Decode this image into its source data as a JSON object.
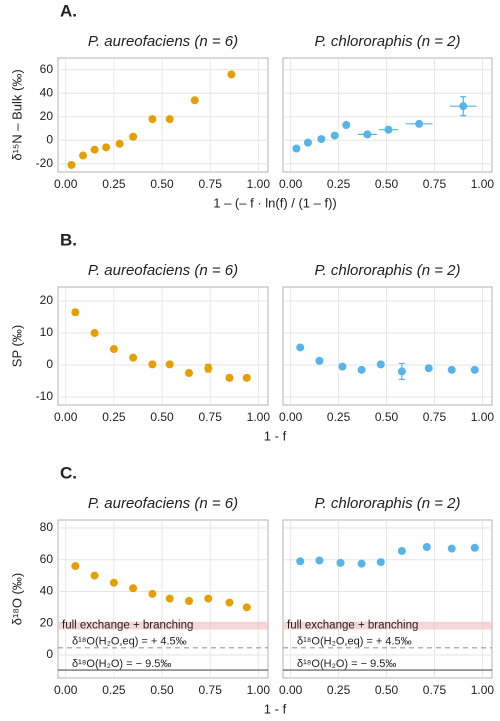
{
  "chart_data": [
    {
      "type": "scatter",
      "panel_label": "A.",
      "title": "P. aureofaciens (n = 6)",
      "x_label": "1 – (– f · ln(f) / (1 – f))",
      "y_label": "δ¹⁵N – Bulk (‰)",
      "x": [
        0.03,
        0.09,
        0.15,
        0.21,
        0.28,
        0.35,
        0.45,
        0.54,
        0.67,
        0.86
      ],
      "values": [
        -21,
        -13,
        -8,
        -6,
        -3,
        3,
        18,
        18,
        34,
        56
      ],
      "color": "#E69F00",
      "xlim": [
        -0.04,
        1.05
      ],
      "ylim": [
        -27,
        70
      ],
      "xticks": [
        {
          "value": 0,
          "label": "0.00"
        },
        {
          "value": 0.25,
          "label": "0.25"
        },
        {
          "value": 0.5,
          "label": "0.50"
        },
        {
          "value": 0.75,
          "label": "0.75"
        },
        {
          "value": 1,
          "label": "1.00"
        }
      ],
      "yticks": [
        -20,
        0,
        20,
        40,
        60
      ],
      "grid": true
    },
    {
      "type": "scatter",
      "title": "P. chlororaphis (n = 2)",
      "x": [
        0.03,
        0.09,
        0.16,
        0.23,
        0.29,
        0.4,
        0.51,
        0.67,
        0.9
      ],
      "values": [
        -7,
        -2,
        1,
        4,
        13,
        5,
        9,
        14,
        29
      ],
      "xerr": [
        null,
        null,
        null,
        null,
        null,
        0.05,
        0.05,
        0.07,
        0.07
      ],
      "yerr": [
        null,
        null,
        null,
        null,
        null,
        null,
        null,
        null,
        8
      ],
      "color": "#56B4E9",
      "xlim": [
        -0.04,
        1.05
      ],
      "ylim": [
        -27,
        70
      ],
      "xticks": [
        {
          "value": 0,
          "label": "0.00"
        },
        {
          "value": 0.25,
          "label": "0.25"
        },
        {
          "value": 0.5,
          "label": "0.50"
        },
        {
          "value": 0.75,
          "label": "0.75"
        },
        {
          "value": 1,
          "label": "1.00"
        }
      ],
      "yticks": [
        -20,
        0,
        20,
        40,
        60
      ],
      "grid": true
    },
    {
      "type": "scatter",
      "panel_label": "B.",
      "title": "P. aureofaciens (n = 6)",
      "x_label": "1 - f",
      "y_label": "SP (‰)",
      "x": [
        0.05,
        0.15,
        0.25,
        0.35,
        0.45,
        0.54,
        0.64,
        0.74,
        0.85,
        0.94
      ],
      "values": [
        16.5,
        10,
        5,
        2.3,
        0.2,
        0.2,
        -2.5,
        -1,
        -4,
        -4
      ],
      "yerr": [
        0.8,
        0.7,
        0.7,
        0.7,
        0.7,
        0.7,
        0.8,
        1.2,
        0.8,
        0.7
      ],
      "color": "#E69F00",
      "xlim": [
        -0.04,
        1.05
      ],
      "ylim": [
        -12.5,
        24.4
      ],
      "xticks": [
        {
          "value": 0,
          "label": "0.00"
        },
        {
          "value": 0.25,
          "label": "0.25"
        },
        {
          "value": 0.5,
          "label": "0.50"
        },
        {
          "value": 0.75,
          "label": "0.75"
        },
        {
          "value": 1,
          "label": "1.00"
        }
      ],
      "yticks": [
        -10,
        0,
        10,
        20
      ],
      "grid": true
    },
    {
      "type": "scatter",
      "title": "P. chlororaphis (n = 2)",
      "x": [
        0.05,
        0.15,
        0.27,
        0.37,
        0.47,
        0.58,
        0.72,
        0.84,
        0.96
      ],
      "values": [
        5.5,
        1.3,
        -0.5,
        -1.5,
        0.2,
        -2,
        -1,
        -1.5,
        -1.5
      ],
      "yerr": [
        null,
        null,
        0.6,
        null,
        0.6,
        2.5,
        null,
        null,
        null
      ],
      "color": "#56B4E9",
      "xlim": [
        -0.04,
        1.05
      ],
      "ylim": [
        -12.5,
        24.4
      ],
      "xticks": [
        {
          "value": 0,
          "label": "0.00"
        },
        {
          "value": 0.25,
          "label": "0.25"
        },
        {
          "value": 0.5,
          "label": "0.50"
        },
        {
          "value": 0.75,
          "label": "0.75"
        },
        {
          "value": 1,
          "label": "1.00"
        }
      ],
      "yticks": [
        -10,
        0,
        10,
        20
      ],
      "grid": true
    },
    {
      "type": "scatter",
      "panel_label": "C.",
      "title": "P. aureofaciens (n = 6)",
      "x_label": "1 - f",
      "y_label": "δ¹⁸O (‰)",
      "x": [
        0.05,
        0.15,
        0.25,
        0.35,
        0.45,
        0.54,
        0.64,
        0.74,
        0.85,
        0.94
      ],
      "values": [
        56,
        50,
        45.5,
        42,
        38.5,
        35.5,
        34,
        35.5,
        33,
        30
      ],
      "yerr": [
        1,
        1,
        1,
        1,
        1,
        1,
        1,
        1,
        1,
        1
      ],
      "color": "#E69F00",
      "xlim": [
        -0.04,
        1.05
      ],
      "ylim": [
        -14.5,
        85
      ],
      "xticks": [
        {
          "value": 0,
          "label": "0.00"
        },
        {
          "value": 0.25,
          "label": "0.25"
        },
        {
          "value": 0.5,
          "label": "0.50"
        },
        {
          "value": 0.75,
          "label": "0.75"
        },
        {
          "value": 1,
          "label": "1.00"
        }
      ],
      "yticks": [
        0,
        20,
        40,
        60,
        80
      ],
      "grid": true,
      "band": {
        "from": 16,
        "to": 21,
        "label": "full exchange + branching"
      },
      "ref_lines": [
        {
          "value": 4.5,
          "label": "δ¹⁸O(H₂O,eq) = + 4.5‰",
          "style": "dashed"
        },
        {
          "value": -9.5,
          "label": "δ¹⁸O(H₂O) = − 9.5‰",
          "style": "solid"
        }
      ]
    },
    {
      "type": "scatter",
      "title": "P. chlororaphis (n = 2)",
      "x": [
        0.05,
        0.15,
        0.26,
        0.37,
        0.47,
        0.58,
        0.71,
        0.84,
        0.96
      ],
      "values": [
        59,
        59.5,
        58,
        57.5,
        58.5,
        65.5,
        68,
        67,
        67.5
      ],
      "yerr": [
        1,
        1,
        1,
        1,
        1,
        1,
        1,
        1,
        1
      ],
      "color": "#56B4E9",
      "xlim": [
        -0.04,
        1.05
      ],
      "ylim": [
        -14.5,
        85
      ],
      "xticks": [
        {
          "value": 0,
          "label": "0.00"
        },
        {
          "value": 0.25,
          "label": "0.25"
        },
        {
          "value": 0.5,
          "label": "0.50"
        },
        {
          "value": 0.75,
          "label": "0.75"
        },
        {
          "value": 1,
          "label": "1.00"
        }
      ],
      "yticks": [
        0,
        20,
        40,
        60,
        80
      ],
      "grid": true,
      "band": {
        "from": 16,
        "to": 21,
        "label": "full exchange + branching"
      },
      "ref_lines": [
        {
          "value": 4.5,
          "label": "δ¹⁸O(H₂O,eq) = + 4.5‰",
          "style": "dashed"
        },
        {
          "value": -9.5,
          "label": "δ¹⁸O(H₂O) = − 9.5‰",
          "style": "solid"
        }
      ]
    }
  ]
}
